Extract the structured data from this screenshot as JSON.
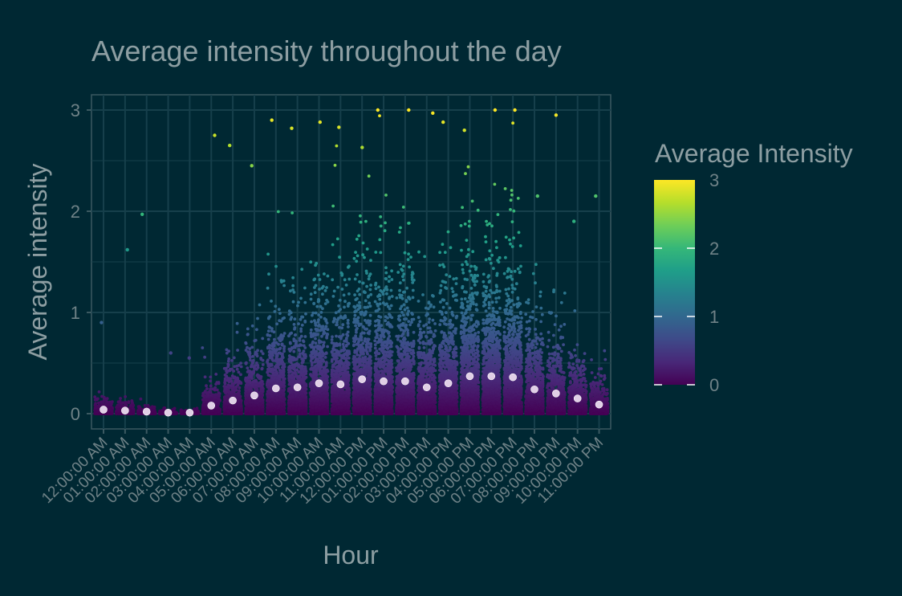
{
  "chart_data": {
    "type": "scatter",
    "title": "Average intensity throughout the day",
    "xlabel": "Hour",
    "ylabel": "Average intensity",
    "ylim": [
      0,
      3
    ],
    "yticks": [
      0,
      1,
      2,
      3
    ],
    "grid": true,
    "categories": [
      "12:00:00 AM",
      "01:00:00 AM",
      "02:00:00 AM",
      "03:00:00 AM",
      "04:00:00 AM",
      "05:00:00 AM",
      "06:00:00 AM",
      "07:00:00 AM",
      "08:00:00 AM",
      "09:00:00 AM",
      "10:00:00 AM",
      "11:00:00 AM",
      "12:00:00 PM",
      "01:00:00 PM",
      "02:00:00 PM",
      "03:00:00 PM",
      "04:00:00 PM",
      "05:00:00 PM",
      "06:00:00 PM",
      "07:00:00 PM",
      "08:00:00 PM",
      "09:00:00 PM",
      "10:00:00 PM",
      "11:00:00 PM"
    ],
    "means": [
      0.04,
      0.03,
      0.02,
      0.01,
      0.01,
      0.08,
      0.13,
      0.18,
      0.25,
      0.26,
      0.3,
      0.29,
      0.34,
      0.32,
      0.32,
      0.26,
      0.3,
      0.37,
      0.37,
      0.36,
      0.24,
      0.2,
      0.15,
      0.09
    ],
    "max_values": [
      0.9,
      1.62,
      1.97,
      0.6,
      0.55,
      2.75,
      2.65,
      2.45,
      2.9,
      2.82,
      2.88,
      2.83,
      2.63,
      3.0,
      3.0,
      2.97,
      2.88,
      2.8,
      3.0,
      3.0,
      2.15,
      2.95,
      1.9,
      2.15
    ],
    "legend": {
      "title": "Average Intensity",
      "position": "right",
      "min": 0,
      "max": 3,
      "ticks": [
        0,
        1,
        2,
        3
      ]
    },
    "colors": {
      "background": "#002833",
      "grid": "#163f4b",
      "mean_point": "#e0cfe6",
      "viridis": [
        "#440154",
        "#482878",
        "#3e4a89",
        "#31688e",
        "#26828e",
        "#1f9e89",
        "#35b779",
        "#6ece58",
        "#b5de2b",
        "#fde725"
      ]
    }
  }
}
